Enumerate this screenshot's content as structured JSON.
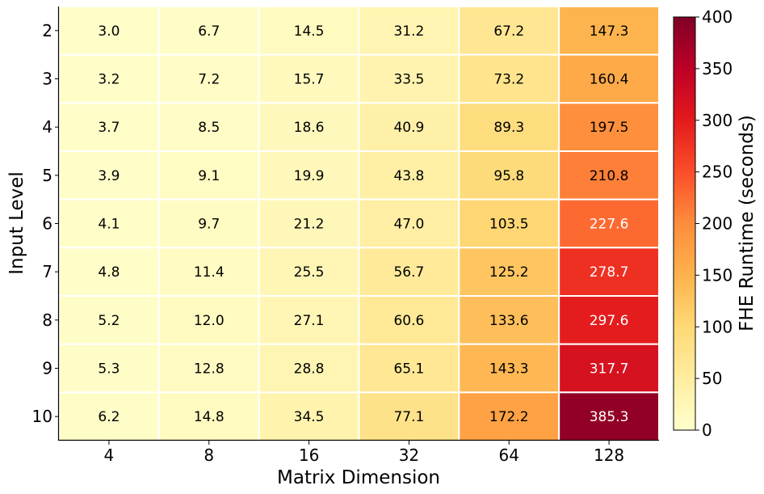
{
  "chart_data": {
    "type": "heatmap",
    "xlabel": "Matrix Dimension",
    "ylabel": "Input Level",
    "x_categories": [
      "4",
      "8",
      "16",
      "32",
      "64",
      "128"
    ],
    "y_categories": [
      "2",
      "3",
      "4",
      "5",
      "6",
      "7",
      "8",
      "9",
      "10"
    ],
    "values": [
      [
        3.0,
        6.7,
        14.5,
        31.2,
        67.2,
        147.3
      ],
      [
        3.2,
        7.2,
        15.7,
        33.5,
        73.2,
        160.4
      ],
      [
        3.7,
        8.5,
        18.6,
        40.9,
        89.3,
        197.5
      ],
      [
        3.9,
        9.1,
        19.9,
        43.8,
        95.8,
        210.8
      ],
      [
        4.1,
        9.7,
        21.2,
        47.0,
        103.5,
        227.6
      ],
      [
        4.8,
        11.4,
        25.5,
        56.7,
        125.2,
        278.7
      ],
      [
        5.2,
        12.0,
        27.1,
        60.6,
        133.6,
        297.6
      ],
      [
        5.3,
        12.8,
        28.8,
        65.1,
        143.3,
        317.7
      ],
      [
        6.2,
        14.8,
        34.5,
        77.1,
        172.2,
        385.3
      ]
    ],
    "value_labels": [
      [
        "3.0",
        "6.7",
        "14.5",
        "31.2",
        "67.2",
        "147.3"
      ],
      [
        "3.2",
        "7.2",
        "15.7",
        "33.5",
        "73.2",
        "160.4"
      ],
      [
        "3.7",
        "8.5",
        "18.6",
        "40.9",
        "89.3",
        "197.5"
      ],
      [
        "3.9",
        "9.1",
        "19.9",
        "43.8",
        "95.8",
        "210.8"
      ],
      [
        "4.1",
        "9.7",
        "21.2",
        "47.0",
        "103.5",
        "227.6"
      ],
      [
        "4.8",
        "11.4",
        "25.5",
        "56.7",
        "125.2",
        "278.7"
      ],
      [
        "5.2",
        "12.0",
        "27.1",
        "60.6",
        "133.6",
        "297.6"
      ],
      [
        "5.3",
        "12.8",
        "28.8",
        "65.1",
        "143.3",
        "317.7"
      ],
      [
        "6.2",
        "14.8",
        "34.5",
        "77.1",
        "172.2",
        "385.3"
      ]
    ],
    "colorbar": {
      "label": "FHE Runtime (seconds)",
      "range": [
        0,
        400
      ],
      "ticks": [
        "0",
        "50",
        "100",
        "150",
        "200",
        "250",
        "300",
        "350",
        "400"
      ],
      "colormap": "YlOrRd"
    }
  }
}
